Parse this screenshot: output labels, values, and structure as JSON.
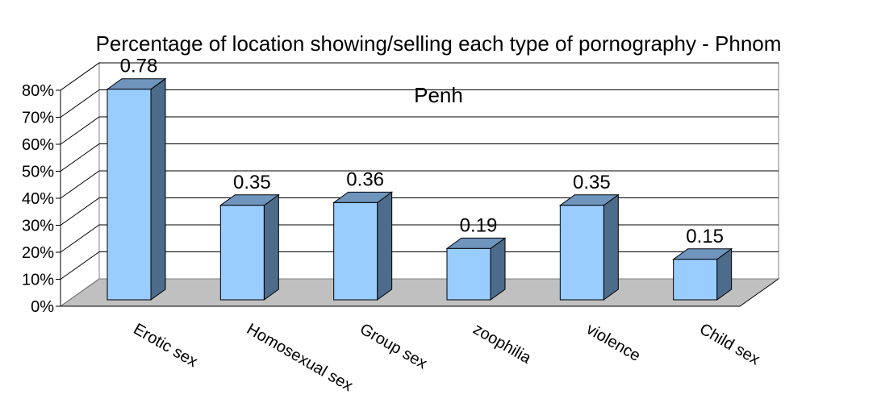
{
  "chart_data": {
    "type": "bar",
    "title_line1": "Percentage of location showing/selling each type of pornography - Phnom",
    "title_line2": "Penh",
    "categories": [
      "Erotic sex",
      "Homosexual sex",
      "Group sex",
      "zoophilia",
      "violence",
      "Child sex"
    ],
    "values": [
      0.78,
      0.35,
      0.36,
      0.19,
      0.35,
      0.15
    ],
    "data_labels": [
      "0.78",
      "0.35",
      "0.36",
      "0.19",
      "0.35",
      "0.15"
    ],
    "y_ticks": [
      "0%",
      "10%",
      "20%",
      "30%",
      "40%",
      "50%",
      "60%",
      "70%",
      "80%"
    ],
    "ylim": [
      0,
      0.8
    ],
    "grid": true,
    "legend": "none",
    "style": "3d-column",
    "colors": {
      "bar_front": "#99ccff",
      "bar_side": "#4d6b8a",
      "bar_top": "#6f95bd",
      "floor": "#c0c0c0",
      "grid": "#000000"
    }
  }
}
